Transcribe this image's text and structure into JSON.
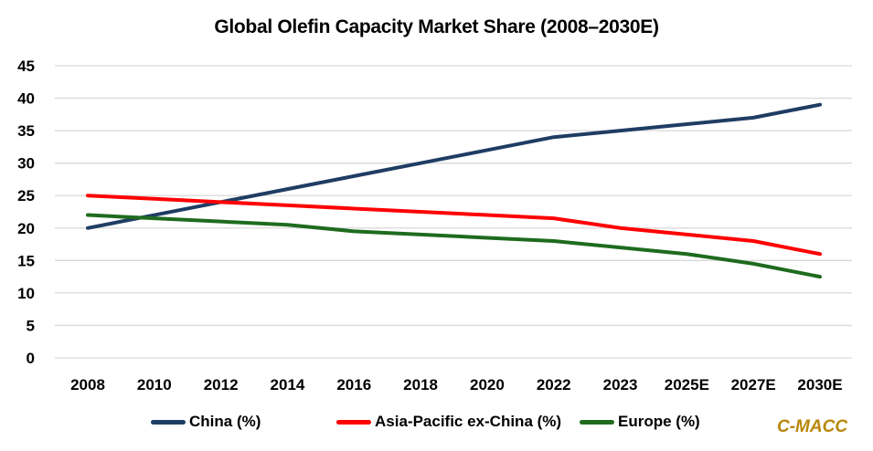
{
  "chart_data": {
    "type": "line",
    "title": "Global Olefin Capacity Market Share (2008–2030E)",
    "xlabel": "",
    "ylabel": "",
    "categories": [
      "2008",
      "2010",
      "2012",
      "2014",
      "2016",
      "2018",
      "2020",
      "2022",
      "2023",
      "2025E",
      "2027E",
      "2030E"
    ],
    "ylim": [
      0,
      45
    ],
    "yticks": [
      0,
      5,
      10,
      15,
      20,
      25,
      30,
      35,
      40,
      45
    ],
    "grid": true,
    "legend_position": "bottom",
    "series": [
      {
        "name": "China (%)",
        "color": "#1f3d63",
        "values": [
          20,
          22,
          24,
          26,
          28,
          30,
          32,
          34,
          35,
          36,
          37,
          39
        ]
      },
      {
        "name": "Asia-Pacific ex-China (%)",
        "color": "#ff0000",
        "values": [
          25,
          24.5,
          24,
          23.5,
          23,
          22.5,
          22,
          21.5,
          20,
          19,
          18,
          16
        ]
      },
      {
        "name": "Europe (%)",
        "color": "#1e6b1e",
        "values": [
          22,
          21.5,
          21,
          20.5,
          19.5,
          19,
          18.5,
          18,
          17,
          16,
          14.5,
          12.5
        ]
      }
    ]
  },
  "brand": {
    "label": "C-MACC",
    "color": "#b8860b"
  }
}
